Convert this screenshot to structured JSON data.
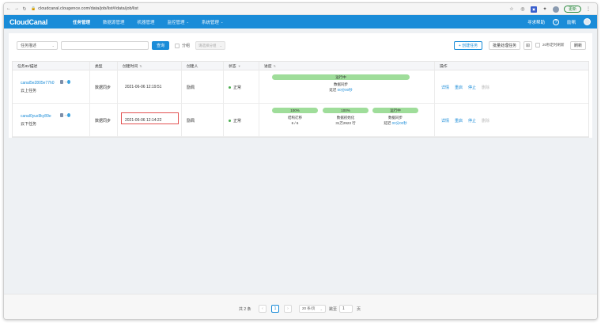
{
  "browser": {
    "url": "cloudcanal.clougence.com/data/job/list#/data/job/list",
    "update_label": "更新"
  },
  "app": {
    "logo": "CloudCanal",
    "menu": [
      {
        "label": "任务管理",
        "active": true
      },
      {
        "label": "数据源管理"
      },
      {
        "label": "机器管理"
      },
      {
        "label": "监控管理",
        "dropdown": true
      },
      {
        "label": "系统管理",
        "dropdown": true
      }
    ],
    "help_text": "寻求帮助",
    "help_icon": "?",
    "username": "励珮"
  },
  "toolbar": {
    "filter_select": "任务描述",
    "query_button": "查询",
    "group_checkbox_label": "分组",
    "group_select_placeholder": "请选择分组",
    "create_button": "+ 创建任务",
    "batch_button": "批量处理任务",
    "auto_refresh_label": "20秒定时刷新",
    "refresh_button": "刷新"
  },
  "table": {
    "headers": {
      "id": "任务ID/描述",
      "type": "类型",
      "created": "创建时间",
      "creator": "创建人",
      "status": "状态",
      "progress": "进度",
      "actions": "操作"
    },
    "rows": [
      {
        "id": "canal5e2805e77h0",
        "desc": "云上任务",
        "type": "数据同步",
        "created": "2021-06-06 12:19:51",
        "creator": "励珮",
        "status": "正常",
        "progress": [
          {
            "bar": "运行中",
            "fill": 1.0,
            "title": "数据同步",
            "sub_prefix": "延迟",
            "sub_link": "00分00秒"
          }
        ],
        "actions": [
          "详情",
          "重启",
          "停止",
          "删除"
        ]
      },
      {
        "id": "canal0yus9ky89e",
        "desc": "云下任务",
        "type": "数据同步",
        "created": "2021-06-06 12:14:22",
        "creator": "励珮",
        "status": "正常",
        "progress": [
          {
            "bar": "100%",
            "fill": 1.0,
            "title": "结构迁移",
            "sub": "6 / 6"
          },
          {
            "bar": "100%",
            "fill": 1.0,
            "title": "数据初始化",
            "sub": "31万2923 行"
          },
          {
            "bar": "运行中",
            "fill": 1.0,
            "title": "数据同步",
            "sub_prefix": "延迟",
            "sub_link": "00分00秒"
          }
        ],
        "actions": [
          "详情",
          "重启",
          "停止",
          "删除"
        ]
      }
    ]
  },
  "pagination": {
    "total": "共 2 条",
    "current_page": "1",
    "page_size": "20 条/页",
    "jump_prefix": "跳至",
    "jump_value": "1",
    "jump_suffix": "页"
  }
}
